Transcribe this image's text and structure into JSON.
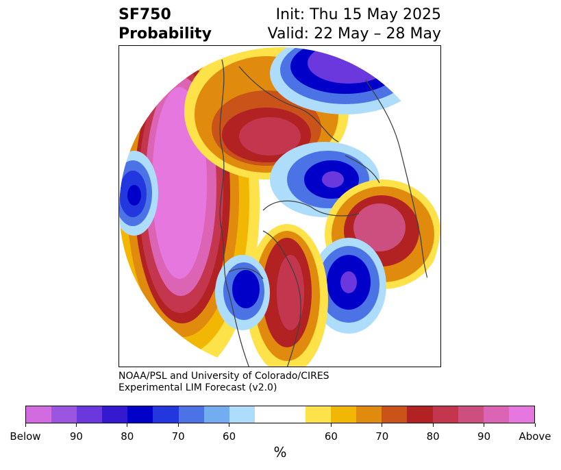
{
  "header": {
    "variable": "SF750",
    "product": "Probability",
    "init": "Init: Thu 15 May 2025",
    "valid": "Valid: 22 May – 28 May"
  },
  "credit": {
    "line1": "NOAA/PSL and University of Colorado/CIRES",
    "line2": "Experimental LIM Forecast (v2.0)"
  },
  "colorbar": {
    "units": "%",
    "below_colors": [
      "#d36be0",
      "#9b55e0",
      "#6a38dc",
      "#3419d1",
      "#0000c8",
      "#2237dd",
      "#4b73e6",
      "#72adf1",
      "#aedcfb"
    ],
    "neutral_color": "#ffffff",
    "above_colors": [
      "#fde24a",
      "#f2b705",
      "#e08b0d",
      "#c95318",
      "#b22222",
      "#c3364d",
      "#cd4f80",
      "#db64b4",
      "#e577df"
    ],
    "tick_labels": [
      "Below",
      "90",
      "80",
      "70",
      "60",
      "60",
      "70",
      "80",
      "90",
      "Above"
    ]
  }
}
